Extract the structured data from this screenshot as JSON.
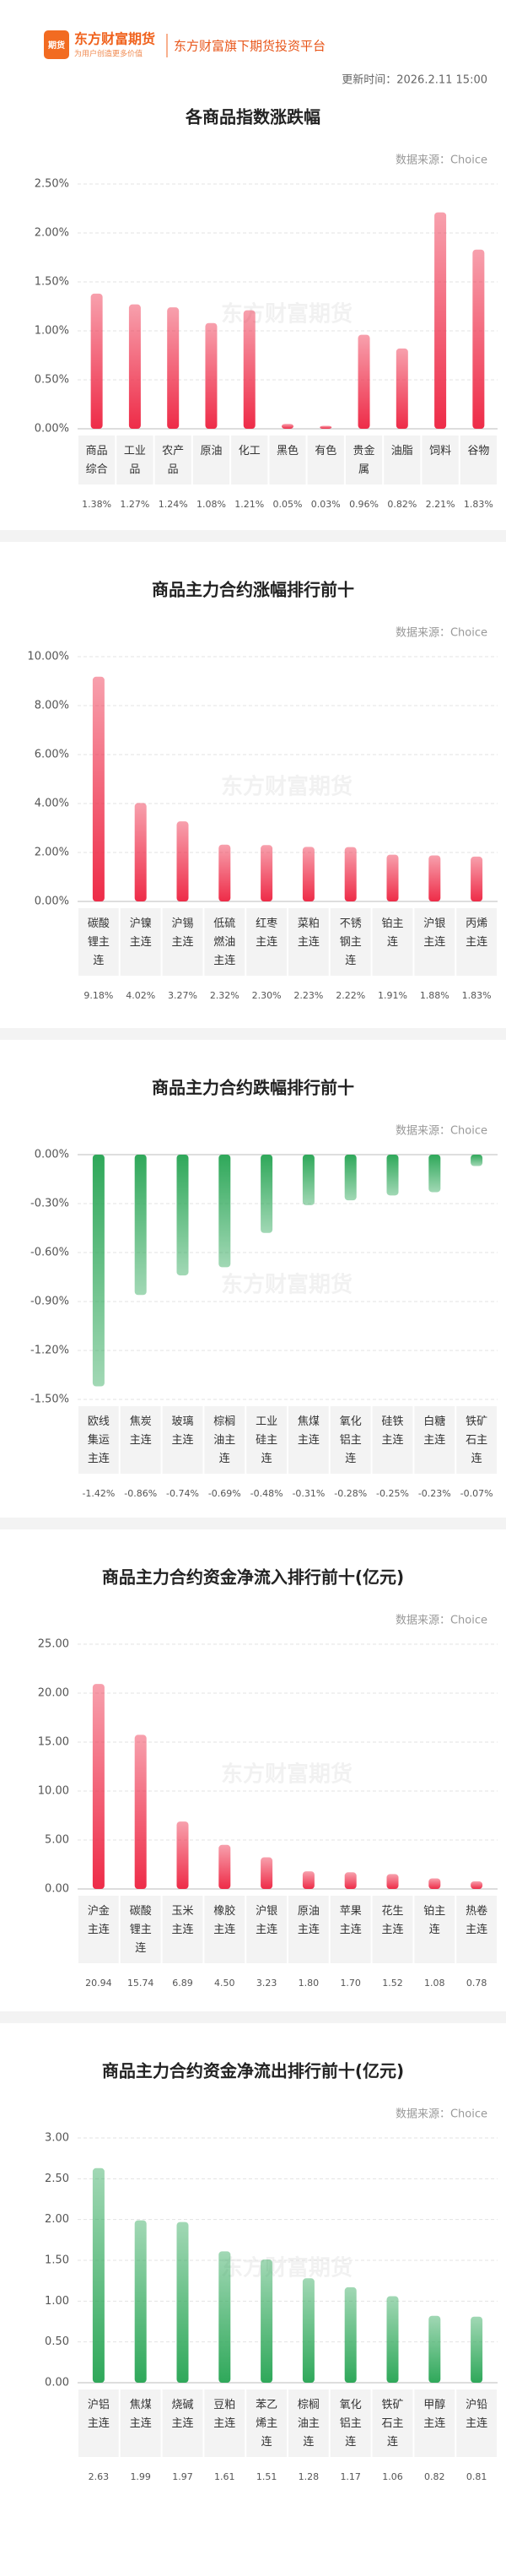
{
  "header": {
    "brand": "东方财富期货",
    "slogan": "为用户创造更多价值",
    "badge": "期货",
    "platform": "东方财富旗下期货投资平台",
    "update_time": "更新时间：2026.2.11 15:00"
  },
  "watermark": "东方财富期货",
  "chart_data": [
    {
      "type": "bar",
      "title": "各商品指数涨跌幅",
      "source": "数据来源：Choice",
      "categories": [
        "商品综合",
        "工业品",
        "农产品",
        "原油",
        "化工",
        "黑色",
        "有色",
        "贵金属",
        "油脂",
        "饲料",
        "谷物"
      ],
      "values": [
        1.38,
        1.27,
        1.24,
        1.08,
        1.21,
        0.05,
        0.03,
        0.96,
        0.82,
        2.21,
        1.83
      ],
      "value_labels": [
        "1.38%",
        "1.27%",
        "1.24%",
        "1.08%",
        "1.21%",
        "0.05%",
        "0.03%",
        "0.96%",
        "0.82%",
        "2.21%",
        "1.83%"
      ],
      "color": "#ee2c48",
      "ylim": [
        0,
        2.5
      ],
      "yticks": [
        {
          "value": 0,
          "label": "0.00%"
        },
        {
          "value": 0.5,
          "label": "0.50%"
        },
        {
          "value": 1,
          "label": "1.00%"
        },
        {
          "value": 1.5,
          "label": "1.50%"
        },
        {
          "value": 2,
          "label": "2.00%"
        },
        {
          "value": 2.5,
          "label": "2.50%"
        }
      ],
      "grid": true
    },
    {
      "type": "bar",
      "title": "商品主力合约涨幅排行前十",
      "source": "数据来源：Choice",
      "categories": [
        "碳酸锂主连",
        "沪镍主连",
        "沪锡主连",
        "低硫燃油主连",
        "红枣主连",
        "菜粕主连",
        "不锈钢主连",
        "铂主连",
        "沪银主连",
        "丙烯主连"
      ],
      "values": [
        9.18,
        4.02,
        3.27,
        2.32,
        2.3,
        2.23,
        2.22,
        1.91,
        1.88,
        1.83
      ],
      "value_labels": [
        "9.18%",
        "4.02%",
        "3.27%",
        "2.32%",
        "2.30%",
        "2.23%",
        "2.22%",
        "1.91%",
        "1.88%",
        "1.83%"
      ],
      "color": "#ee2c48",
      "ylim": [
        0,
        10
      ],
      "yticks": [
        {
          "value": 0,
          "label": "0.00%"
        },
        {
          "value": 2,
          "label": "2.00%"
        },
        {
          "value": 4,
          "label": "4.00%"
        },
        {
          "value": 6,
          "label": "6.00%"
        },
        {
          "value": 8,
          "label": "8.00%"
        },
        {
          "value": 10,
          "label": "10.00%"
        }
      ],
      "grid": true
    },
    {
      "type": "bar",
      "title": "商品主力合约跌幅排行前十",
      "source": "数据来源：Choice",
      "categories": [
        "欧线集运主连",
        "焦炭主连",
        "玻璃主连",
        "棕榈油主连",
        "工业硅主连",
        "焦煤主连",
        "氧化铝主连",
        "硅铁主连",
        "白糖主连",
        "铁矿石主连"
      ],
      "values": [
        -1.42,
        -0.86,
        -0.74,
        -0.69,
        -0.48,
        -0.31,
        -0.28,
        -0.25,
        -0.23,
        -0.07
      ],
      "value_labels": [
        "-1.42%",
        "-0.86%",
        "-0.74%",
        "-0.69%",
        "-0.48%",
        "-0.31%",
        "-0.28%",
        "-0.25%",
        "-0.23%",
        "-0.07%"
      ],
      "color": "#2fa85a",
      "ylim": [
        -1.5,
        0
      ],
      "yticks": [
        {
          "value": 0,
          "label": "0.00%"
        },
        {
          "value": -0.3,
          "label": "-0.30%"
        },
        {
          "value": -0.6,
          "label": "-0.60%"
        },
        {
          "value": -0.9,
          "label": "-0.90%"
        },
        {
          "value": -1.2,
          "label": "-1.20%"
        },
        {
          "value": -1.5,
          "label": "-1.50%"
        }
      ],
      "grid": true
    },
    {
      "type": "bar",
      "title": "商品主力合约资金净流入排行前十(亿元)",
      "source": "数据来源：Choice",
      "categories": [
        "沪金主连",
        "碳酸锂主连",
        "玉米主连",
        "橡胶主连",
        "沪银主连",
        "原油主连",
        "苹果主连",
        "花生主连",
        "铂主连",
        "热卷主连"
      ],
      "values": [
        20.94,
        15.74,
        6.89,
        4.5,
        3.23,
        1.8,
        1.7,
        1.52,
        1.08,
        0.78
      ],
      "value_labels": [
        "20.94",
        "15.74",
        "6.89",
        "4.50",
        "3.23",
        "1.80",
        "1.70",
        "1.52",
        "1.08",
        "0.78"
      ],
      "color": "#ee2c48",
      "ylim": [
        0,
        25
      ],
      "yticks": [
        {
          "value": 0,
          "label": "0.00"
        },
        {
          "value": 5,
          "label": "5.00"
        },
        {
          "value": 10,
          "label": "10.00"
        },
        {
          "value": 15,
          "label": "15.00"
        },
        {
          "value": 20,
          "label": "20.00"
        },
        {
          "value": 25,
          "label": "25.00"
        }
      ],
      "grid": true
    },
    {
      "type": "bar",
      "title": "商品主力合约资金净流出排行前十(亿元)",
      "source": "数据来源：Choice",
      "categories": [
        "沪铝主连",
        "焦煤主连",
        "烧碱主连",
        "豆粕主连",
        "苯乙烯主连",
        "棕榈油主连",
        "氧化铝主连",
        "铁矿石主连",
        "甲醇主连",
        "沪铅主连"
      ],
      "values": [
        2.63,
        1.99,
        1.97,
        1.61,
        1.51,
        1.28,
        1.17,
        1.06,
        0.82,
        0.81
      ],
      "value_labels": [
        "2.63",
        "1.99",
        "1.97",
        "1.61",
        "1.51",
        "1.28",
        "1.17",
        "1.06",
        "0.82",
        "0.81"
      ],
      "color": "#2fa85a",
      "ylim": [
        0,
        3
      ],
      "yticks": [
        {
          "value": 0,
          "label": "0.00"
        },
        {
          "value": 0.5,
          "label": "0.50"
        },
        {
          "value": 1,
          "label": "1.00"
        },
        {
          "value": 1.5,
          "label": "1.50"
        },
        {
          "value": 2,
          "label": "2.00"
        },
        {
          "value": 2.5,
          "label": "2.50"
        },
        {
          "value": 3,
          "label": "3.00"
        }
      ],
      "grid": true
    }
  ]
}
